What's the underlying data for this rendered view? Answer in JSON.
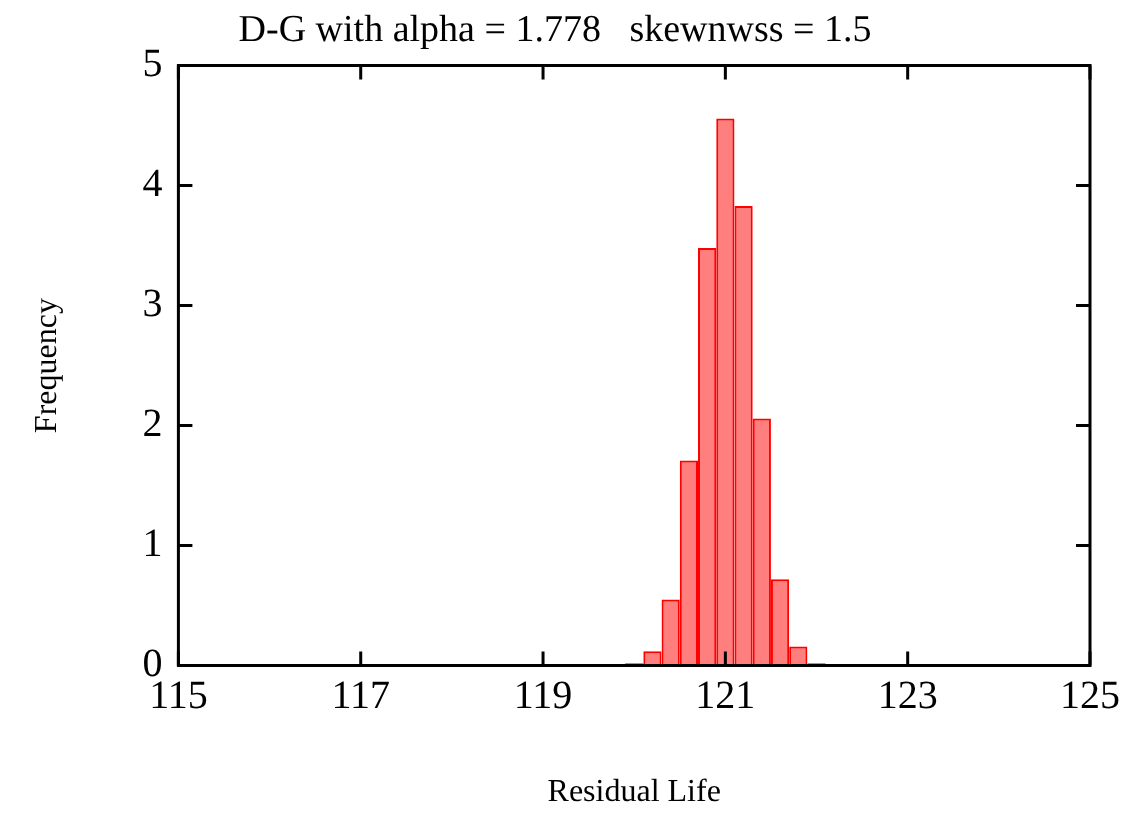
{
  "chart_data": {
    "type": "histogram",
    "title": "D-G with alpha = 1.778   skewnwss = 1.5",
    "xlabel": "Residual Life",
    "ylabel": "Frequency",
    "bins": [
      119.9,
      120.1,
      120.3,
      120.5,
      120.7,
      120.9,
      121.1,
      121.3,
      121.5,
      121.7,
      121.9,
      122.1
    ],
    "values": [
      0.02,
      0.12,
      0.55,
      1.71,
      3.48,
      4.56,
      3.83,
      2.06,
      0.72,
      0.16,
      0.02
    ],
    "color": "#ff0000",
    "xlim": [
      115,
      125
    ],
    "xticks": [
      115,
      117,
      119,
      121,
      123,
      125
    ],
    "ylim": [
      0,
      5
    ],
    "yticks": [
      0,
      1,
      2,
      3,
      4,
      5
    ],
    "grid": false,
    "legend": false
  }
}
